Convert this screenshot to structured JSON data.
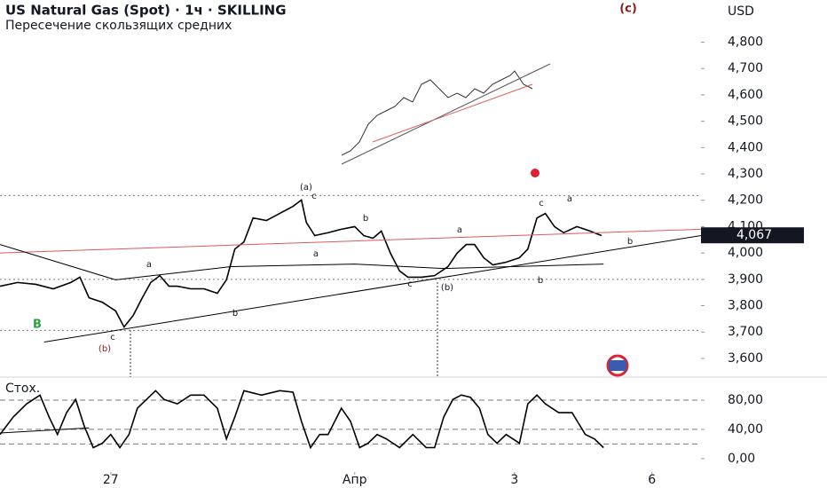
{
  "chart_data": [
    {
      "type": "line",
      "title": "US Natural Gas (Spot) · 1ч · SKILLING",
      "subtitle": "Пересечение скользящих средних",
      "currency": "USD",
      "xlim": [
        0,
        100
      ],
      "ylim": [
        3529,
        4960
      ],
      "yticks": [
        {
          "value": 4800,
          "label": "4,800"
        },
        {
          "value": 4700,
          "label": "4,700"
        },
        {
          "value": 4600,
          "label": "4,600"
        },
        {
          "value": 4500,
          "label": "4,500"
        },
        {
          "value": 4400,
          "label": "4,400"
        },
        {
          "value": 4300,
          "label": "4,300"
        },
        {
          "value": 4200,
          "label": "4,200"
        },
        {
          "value": 4100,
          "label": "4,100"
        },
        {
          "value": 4000,
          "label": "4,000"
        },
        {
          "value": 3900,
          "label": "3,900"
        },
        {
          "value": 3800,
          "label": "3,800"
        },
        {
          "value": 3700,
          "label": "3,700"
        },
        {
          "value": 3600,
          "label": "3,600"
        }
      ],
      "last_label": {
        "value": 4067,
        "label": "4,067"
      },
      "levels": [
        4218,
        3900,
        3706
      ],
      "series": [
        {
          "color": "#000000",
          "x": [
            0,
            2.5,
            5.1,
            7.6,
            10.1,
            11.4,
            12.7,
            14.6,
            16.5,
            17.7,
            19,
            20.3,
            21.5,
            22.8,
            24.1,
            25.3,
            27.2,
            29.1,
            31,
            32.3,
            33.5,
            34.8,
            36.1,
            38,
            39.9,
            41.8,
            43,
            43.7,
            44.9,
            46.8,
            48.7,
            50.6,
            51.9,
            53.2,
            54.4,
            55.7,
            57,
            58.2,
            60.1,
            62,
            63.9,
            65.2,
            66.5,
            67.7,
            69,
            70.3,
            72.2,
            74.1,
            75.3,
            76.6,
            77.8,
            79.1,
            80.4,
            82.3,
            84.2,
            85.8
          ],
          "values": [
            3874,
            3888,
            3881,
            3864,
            3888,
            3908,
            3830,
            3813,
            3780,
            3719,
            3763,
            3830,
            3888,
            3914,
            3874,
            3874,
            3864,
            3864,
            3847,
            3898,
            4015,
            4042,
            4133,
            4123,
            4150,
            4177,
            4201,
            4116,
            4066,
            4077,
            4090,
            4100,
            4066,
            4056,
            4083,
            3999,
            3932,
            3908,
            3908,
            3914,
            3948,
            3999,
            4032,
            4032,
            3982,
            3955,
            3965,
            3982,
            4015,
            4133,
            4150,
            4100,
            4077,
            4100,
            4083,
            4066
          ]
        },
        {
          "color": "#e05a5a",
          "x": [
            0,
            100
          ],
          "values": [
            4000,
            4090
          ]
        },
        {
          "color": "#000000",
          "x": [
            0,
            16.5,
            32.9,
            50.6,
            63.3,
            86.1
          ],
          "values": [
            4032,
            3898,
            3948,
            3958,
            3941,
            3958
          ]
        },
        {
          "color": "#000000",
          "x": [
            6.3,
            100
          ],
          "values": [
            3662,
            4066
          ]
        }
      ],
      "annotations": [
        "(a)",
        "c",
        "a",
        "b",
        "c",
        "(b)",
        "b",
        "a",
        "a",
        "c",
        "(b)",
        "b",
        "c",
        "a",
        "b",
        "B",
        "(c)"
      ]
    },
    {
      "type": "line",
      "title": "Стох.",
      "xlim": [
        0,
        100
      ],
      "ylim": [
        -16,
        108
      ],
      "yticks": [
        {
          "value": 80,
          "label": "80,00"
        },
        {
          "value": 40,
          "label": "40,00"
        },
        {
          "value": 0,
          "label": "0,00"
        }
      ],
      "levels": [
        80,
        40,
        20
      ],
      "xticks": [
        {
          "value": 15.8,
          "label": "27"
        },
        {
          "value": 50.6,
          "label": "Апр"
        },
        {
          "value": 73.4,
          "label": "3"
        },
        {
          "value": 93,
          "label": "6"
        }
      ],
      "series": [
        {
          "color": "#000000",
          "x": [
            0,
            1.9,
            3.8,
            5.7,
            7,
            8.2,
            9.5,
            10.8,
            12,
            13.3,
            14.6,
            15.8,
            17.1,
            18.4,
            19.6,
            20.9,
            22.2,
            23.4,
            25.3,
            27.2,
            29.1,
            31,
            32.3,
            33.5,
            34.8,
            37.3,
            39.9,
            41.8,
            43,
            44.3,
            45.6,
            46.8,
            48.7,
            50,
            51.3,
            52.5,
            53.8,
            55.1,
            57,
            58.9,
            60.8,
            62,
            63.3,
            64.6,
            65.8,
            67.1,
            68.4,
            69.6,
            70.9,
            72.2,
            74.1,
            75.3,
            76.6,
            77.8,
            79.7,
            81.6,
            83.5,
            84.8,
            86.1
          ],
          "values": [
            33,
            57,
            75,
            87,
            57,
            33,
            63,
            81,
            45,
            15,
            21,
            33,
            15,
            33,
            69,
            81,
            93,
            81,
            75,
            87,
            87,
            69,
            27,
            57,
            93,
            87,
            93,
            91,
            51,
            15,
            33,
            33,
            69,
            51,
            15,
            21,
            33,
            27,
            15,
            33,
            15,
            15,
            57,
            81,
            87,
            84,
            69,
            33,
            21,
            33,
            21,
            75,
            87,
            75,
            63,
            63,
            33,
            27,
            15
          ]
        },
        {
          "color": "#000000",
          "x": [
            0,
            12.7
          ],
          "values": [
            35,
            42
          ]
        }
      ]
    }
  ]
}
